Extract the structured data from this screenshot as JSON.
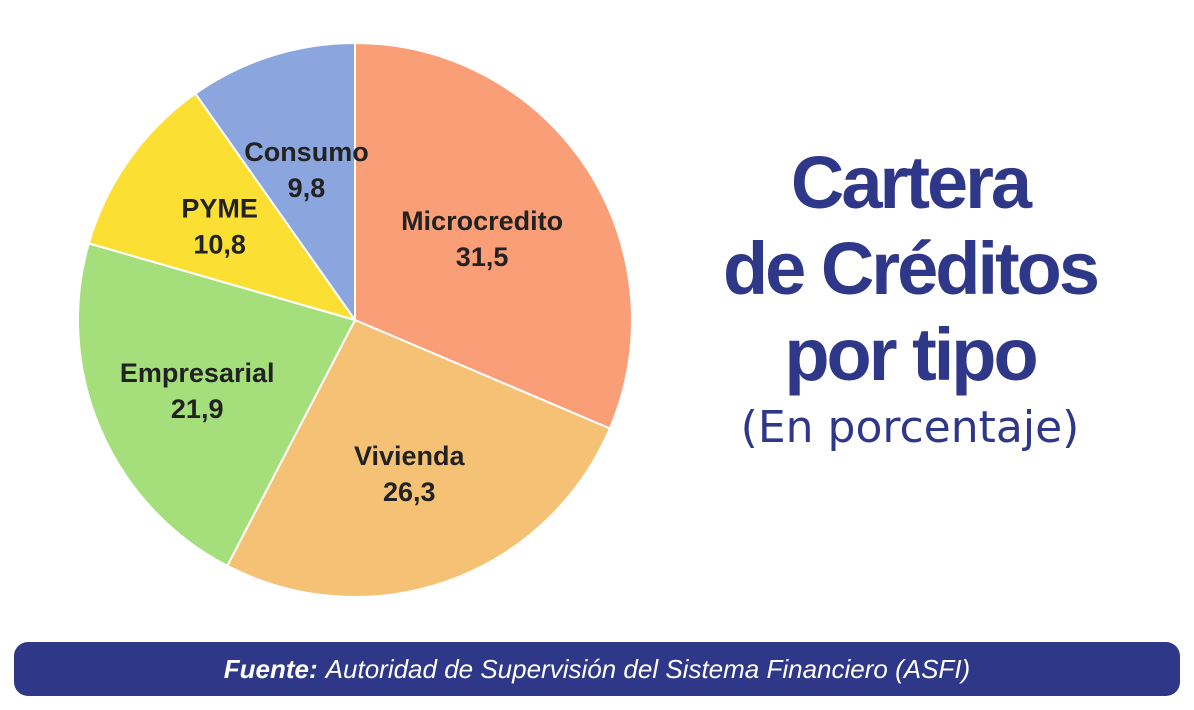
{
  "chart_data": {
    "type": "pie",
    "title": "Cartera de Créditos por tipo",
    "title_lines": [
      "Cartera",
      "de Créditos",
      "por tipo"
    ],
    "subtitle": "(En porcentaje)",
    "slices": [
      {
        "label": "Microcredito",
        "value": 31.5,
        "display": "31,5",
        "color": "#fa9e77"
      },
      {
        "label": "Vivienda",
        "value": 26.3,
        "display": "26,3",
        "color": "#f5c275"
      },
      {
        "label": "Empresarial",
        "value": 21.9,
        "display": "21,9",
        "color": "#a5df7c"
      },
      {
        "label": "PYME",
        "value": 10.8,
        "display": "10,8",
        "color": "#fbe033"
      },
      {
        "label": "Consumo",
        "value": 9.8,
        "display": "9,8",
        "color": "#8ba6de"
      }
    ]
  },
  "footer": {
    "source_label": "Fuente:",
    "source_text": "Autoridad de Supervisión del Sistema Financiero (ASFI)"
  },
  "colors": {
    "title": "#2e3788",
    "footer_bg": "#2e3788"
  }
}
